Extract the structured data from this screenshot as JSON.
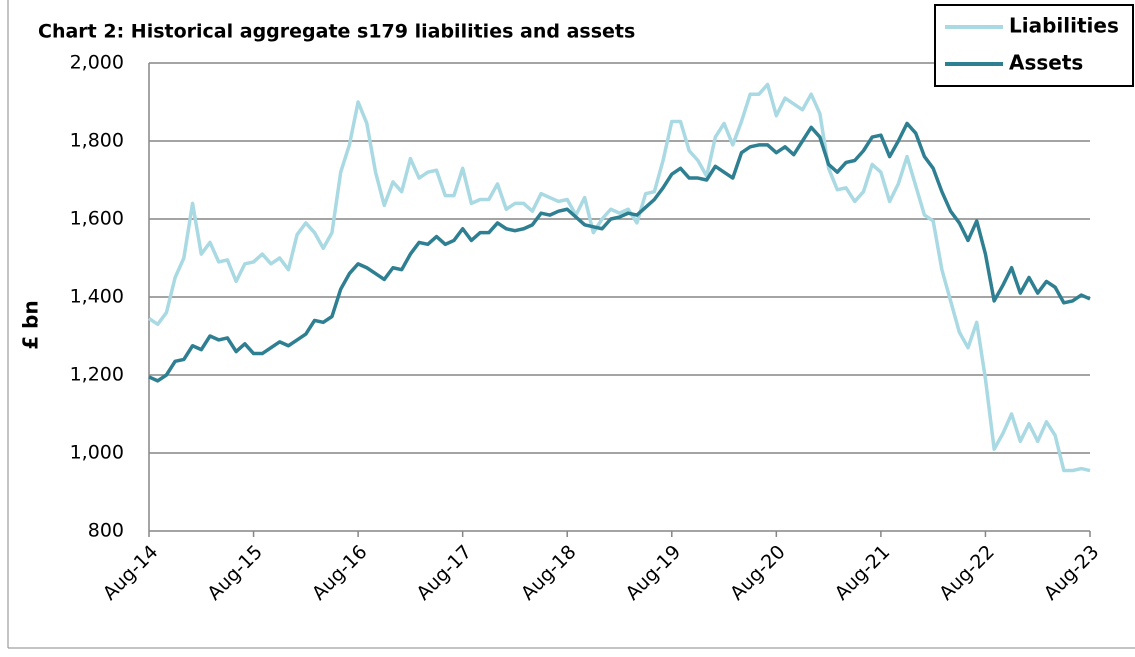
{
  "chart_data": {
    "type": "line",
    "title": "Chart 2: Historical aggregate s179 liabilities and assets",
    "y_label": "£ bn",
    "categories": [
      "Aug-14",
      null,
      null,
      null,
      null,
      null,
      null,
      null,
      null,
      null,
      null,
      null,
      "Aug-15",
      null,
      null,
      null,
      null,
      null,
      null,
      null,
      null,
      null,
      null,
      null,
      "Aug-16",
      null,
      null,
      null,
      null,
      null,
      null,
      null,
      null,
      null,
      null,
      null,
      "Aug-17",
      null,
      null,
      null,
      null,
      null,
      null,
      null,
      null,
      null,
      null,
      null,
      "Aug-18",
      null,
      null,
      null,
      null,
      null,
      null,
      null,
      null,
      null,
      null,
      null,
      "Aug-19",
      null,
      null,
      null,
      null,
      null,
      null,
      null,
      null,
      null,
      null,
      null,
      "Aug-20",
      null,
      null,
      null,
      null,
      null,
      null,
      null,
      null,
      null,
      null,
      null,
      "Aug-21",
      null,
      null,
      null,
      null,
      null,
      null,
      null,
      null,
      null,
      null,
      null,
      "Aug-22",
      null,
      null,
      null,
      null,
      null,
      null,
      null,
      null,
      null,
      null,
      null,
      "Aug-23"
    ],
    "series": [
      {
        "name": "Liabilities",
        "color": "#a9d9e3",
        "values": [
          1345,
          1330,
          1360,
          1450,
          1500,
          1640,
          1510,
          1540,
          1490,
          1495,
          1440,
          1485,
          1490,
          1510,
          1485,
          1500,
          1470,
          1560,
          1590,
          1565,
          1525,
          1565,
          1720,
          1790,
          1900,
          1845,
          1720,
          1635,
          1695,
          1670,
          1755,
          1705,
          1720,
          1725,
          1660,
          1660,
          1730,
          1640,
          1650,
          1650,
          1690,
          1625,
          1640,
          1640,
          1620,
          1665,
          1655,
          1645,
          1650,
          1610,
          1655,
          1565,
          1600,
          1625,
          1615,
          1625,
          1590,
          1665,
          1670,
          1750,
          1850,
          1850,
          1775,
          1750,
          1710,
          1810,
          1845,
          1790,
          1850,
          1920,
          1920,
          1945,
          1865,
          1910,
          1895,
          1880,
          1920,
          1870,
          1730,
          1675,
          1680,
          1645,
          1670,
          1740,
          1720,
          1645,
          1690,
          1760,
          1685,
          1610,
          1595,
          1470,
          1390,
          1310,
          1270,
          1335,
          1190,
          1010,
          1050,
          1100,
          1030,
          1075,
          1030,
          1080,
          1045,
          955,
          955,
          960,
          955
        ]
      },
      {
        "name": "Assets",
        "color": "#2e7f92",
        "values": [
          1195,
          1185,
          1200,
          1235,
          1240,
          1275,
          1265,
          1300,
          1290,
          1295,
          1260,
          1280,
          1255,
          1255,
          1270,
          1285,
          1275,
          1290,
          1305,
          1340,
          1335,
          1350,
          1420,
          1460,
          1485,
          1475,
          1460,
          1445,
          1475,
          1470,
          1510,
          1540,
          1535,
          1555,
          1535,
          1545,
          1575,
          1545,
          1565,
          1565,
          1590,
          1575,
          1570,
          1575,
          1585,
          1615,
          1610,
          1620,
          1625,
          1605,
          1585,
          1580,
          1575,
          1600,
          1605,
          1615,
          1610,
          1630,
          1650,
          1680,
          1715,
          1730,
          1705,
          1705,
          1700,
          1735,
          1720,
          1705,
          1770,
          1785,
          1790,
          1790,
          1770,
          1785,
          1765,
          1800,
          1835,
          1810,
          1740,
          1720,
          1745,
          1750,
          1775,
          1810,
          1815,
          1760,
          1800,
          1845,
          1820,
          1760,
          1730,
          1670,
          1620,
          1590,
          1545,
          1595,
          1510,
          1390,
          1430,
          1475,
          1410,
          1450,
          1410,
          1440,
          1425,
          1385,
          1390,
          1405,
          1395
        ]
      }
    ],
    "ylim": [
      800,
      2000
    ],
    "yticks": [
      800,
      {
        "value": 1000,
        "label": "1,000"
      },
      {
        "value": 1200,
        "label": "1,200"
      },
      {
        "value": 1400,
        "label": "1,400"
      },
      {
        "value": 1600,
        "label": "1,600"
      },
      {
        "value": 1800,
        "label": "1,800"
      },
      {
        "value": 2000,
        "label": "2,000"
      }
    ],
    "grid": true,
    "legend": "top-right"
  }
}
